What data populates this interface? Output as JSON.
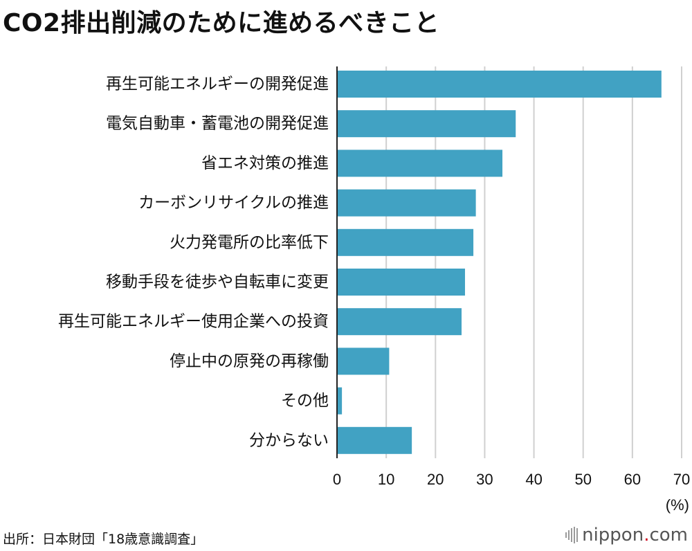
{
  "title": "CO2排出削減のために進めるべきこと",
  "source": "出所：日本財団「18歳意識調査」",
  "logo": {
    "name": "nippon",
    "dot": ".",
    "tld": "com",
    "dot_color": "#d0021b"
  },
  "colors": {
    "bar": "#41a2c3",
    "grid": "#d0d0d0",
    "axis": "#222222"
  },
  "chart_data": {
    "type": "bar",
    "orientation": "horizontal",
    "categories": [
      "再生可能エネルギーの開発促進",
      "電気自動車・蓄電池の開発促進",
      "省エネ対策の推進",
      "カーボンリサイクルの推進",
      "火力発電所の比率低下",
      "移動手段を徒歩や自転車に変更",
      "再生可能エネルギー使用企業への投資",
      "停止中の原発の再稼働",
      "その他",
      "分からない"
    ],
    "values": [
      65.9,
      36.3,
      33.6,
      28.2,
      27.7,
      26.0,
      25.3,
      10.6,
      1.0,
      15.2
    ],
    "xlim": [
      0,
      70
    ],
    "xticks": [
      0,
      10,
      20,
      30,
      40,
      50,
      60,
      70
    ],
    "unit_label": "(%)",
    "grid": true
  }
}
